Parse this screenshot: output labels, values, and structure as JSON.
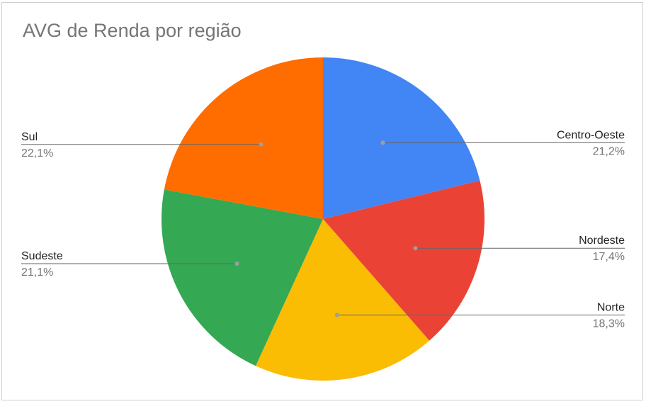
{
  "chart_data": {
    "type": "pie",
    "title": "AVG de Renda por região",
    "slices": [
      {
        "label": "Centro-Oeste",
        "percent_label": "21,2%",
        "value": 21.2,
        "color": "#4285f4",
        "side": "right"
      },
      {
        "label": "Nordeste",
        "percent_label": "17,4%",
        "value": 17.4,
        "color": "#ea4335",
        "side": "right"
      },
      {
        "label": "Norte",
        "percent_label": "18,3%",
        "value": 18.3,
        "color": "#fbbc04",
        "side": "right"
      },
      {
        "label": "Sudeste",
        "percent_label": "21,1%",
        "value": 21.1,
        "color": "#34a853",
        "side": "left"
      },
      {
        "label": "Sul",
        "percent_label": "22,1%",
        "value": 22.1,
        "color": "#ff6d01",
        "side": "left"
      }
    ],
    "start_angle": "12 o'clock",
    "direction": "clockwise",
    "legend": "labels with leader lines"
  }
}
